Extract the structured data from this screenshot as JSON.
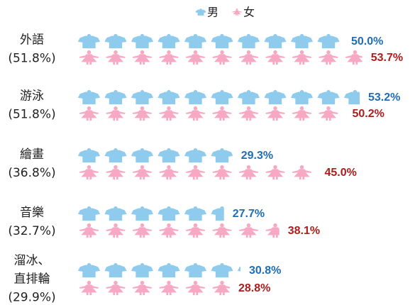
{
  "chart_data": {
    "type": "pictograph",
    "category_lines": [
      [
        "外語",
        "(51.8%)"
      ],
      [
        "游泳",
        "(51.8%)"
      ],
      [
        "繪畫",
        "(36.8%)"
      ],
      [
        "音樂",
        "(32.7%)"
      ],
      [
        "溜冰、",
        "直排輪",
        "(29.9%)"
      ]
    ],
    "series": [
      {
        "name": "男",
        "color": "#8ecbec",
        "label_color": "#1f6db5",
        "values": [
          50.0,
          53.2,
          29.3,
          27.7,
          30.8
        ],
        "value_labels": [
          "50.0%",
          "53.2%",
          "29.3%",
          "27.7%",
          "30.8%"
        ]
      },
      {
        "name": "女",
        "color": "#f7a8c2",
        "label_color": "#b01c1c",
        "values": [
          53.7,
          50.2,
          45.0,
          38.1,
          28.8
        ],
        "value_labels": [
          "53.7%",
          "50.2%",
          "45.0%",
          "38.1%",
          "28.8%"
        ]
      }
    ]
  }
}
